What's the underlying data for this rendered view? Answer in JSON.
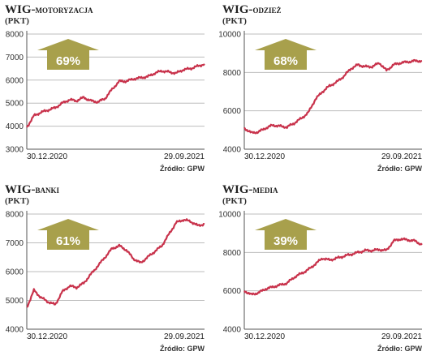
{
  "source_label": "Źródło: GPW",
  "colors": {
    "line": "#c8324b",
    "badge": "#a8a04c",
    "grid": "#bdbdbd",
    "axis": "#555555"
  },
  "chart_data": [
    {
      "type": "line",
      "title_main": "WIG-",
      "title_sc": "motoryzacja",
      "unit": "(PKT)",
      "badge": "69%",
      "x_start_label": "30.12.2020",
      "x_end_label": "29.09.2021",
      "ylim": [
        3000,
        8000
      ],
      "yticks": [
        3000,
        4000,
        5000,
        6000,
        7000,
        8000
      ],
      "x": [
        0,
        4,
        8,
        12,
        16,
        20,
        24,
        28,
        32,
        36,
        40,
        44,
        48,
        52,
        56,
        60,
        64,
        68,
        72,
        76,
        80,
        84,
        88,
        92,
        96,
        100
      ],
      "values": [
        3950,
        4450,
        4600,
        4700,
        4800,
        5000,
        5150,
        5100,
        5250,
        5100,
        5050,
        5200,
        5600,
        5950,
        5950,
        6050,
        6100,
        6150,
        6300,
        6400,
        6350,
        6300,
        6450,
        6500,
        6600,
        6700
      ]
    },
    {
      "type": "line",
      "title_main": "WIG-",
      "title_sc": "odzież",
      "unit": "(PKT)",
      "badge": "68%",
      "x_start_label": "30.12.2020",
      "x_end_label": "29.09.2021",
      "ylim": [
        4000,
        10000
      ],
      "yticks": [
        4000,
        6000,
        8000,
        10000
      ],
      "x": [
        0,
        4,
        8,
        12,
        16,
        20,
        24,
        28,
        32,
        36,
        40,
        44,
        48,
        52,
        56,
        60,
        64,
        68,
        72,
        76,
        80,
        84,
        88,
        92,
        96,
        100
      ],
      "values": [
        5100,
        4850,
        4900,
        5100,
        5250,
        5200,
        5150,
        5350,
        5600,
        5900,
        6600,
        7000,
        7300,
        7500,
        7800,
        8200,
        8400,
        8300,
        8300,
        8500,
        8100,
        8400,
        8500,
        8550,
        8600,
        8600
      ]
    },
    {
      "type": "line",
      "title_main": "WIG-",
      "title_sc": "banki",
      "unit": "(PKT)",
      "badge": "61%",
      "x_start_label": "30.12.2020",
      "x_end_label": "29.09.2021",
      "ylim": [
        4000,
        8000
      ],
      "yticks": [
        4000,
        5000,
        6000,
        7000,
        8000
      ],
      "x": [
        0,
        4,
        8,
        12,
        16,
        20,
        24,
        28,
        32,
        36,
        40,
        44,
        48,
        52,
        56,
        60,
        64,
        68,
        72,
        76,
        80,
        84,
        88,
        92,
        96,
        100
      ],
      "values": [
        4750,
        5350,
        5100,
        4950,
        4850,
        5300,
        5500,
        5450,
        5600,
        5900,
        6200,
        6500,
        6800,
        6900,
        6750,
        6450,
        6300,
        6500,
        6700,
        6900,
        7300,
        7700,
        7800,
        7750,
        7600,
        7650
      ]
    },
    {
      "type": "line",
      "title_main": "WIG-",
      "title_sc": "media",
      "unit": "(PKT)",
      "badge": "39%",
      "x_start_label": "30.12.2020",
      "x_end_label": "29.09.2021",
      "ylim": [
        4000,
        10000
      ],
      "yticks": [
        4000,
        6000,
        8000,
        10000
      ],
      "x": [
        0,
        4,
        8,
        12,
        16,
        20,
        24,
        28,
        32,
        36,
        40,
        44,
        48,
        52,
        56,
        60,
        64,
        68,
        72,
        76,
        80,
        84,
        88,
        92,
        96,
        100
      ],
      "values": [
        6000,
        5800,
        5900,
        6100,
        6200,
        6300,
        6400,
        6700,
        6900,
        7100,
        7400,
        7700,
        7600,
        7700,
        7800,
        7900,
        8000,
        8100,
        8100,
        8150,
        8100,
        8600,
        8700,
        8650,
        8600,
        8400
      ]
    }
  ]
}
